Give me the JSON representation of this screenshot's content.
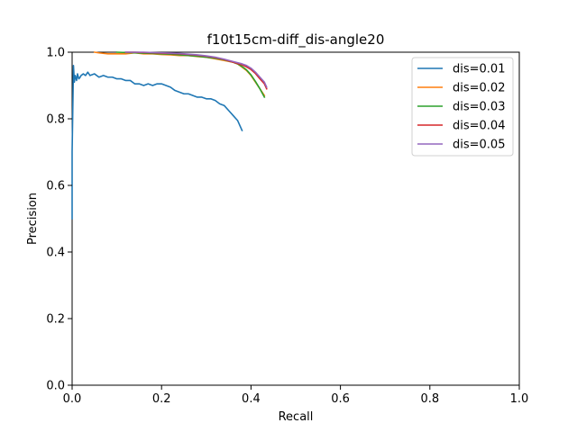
{
  "chart_data": {
    "type": "line",
    "title": "f10t15cm-diff_dis-angle20",
    "xlabel": "Recall",
    "ylabel": "Precision",
    "xlim": [
      0,
      1
    ],
    "ylim": [
      0,
      1
    ],
    "xticks": [
      "0.0",
      "0.2",
      "0.4",
      "0.6",
      "0.8",
      "1.0"
    ],
    "yticks": [
      "0.0",
      "0.2",
      "0.4",
      "0.6",
      "0.8",
      "1.0"
    ],
    "grid": false,
    "legend_position": "top-right",
    "series": [
      {
        "name": "dis=0.01",
        "color": "#1f77b4",
        "x": [
          0.0,
          0.0,
          0.003,
          0.005,
          0.007,
          0.01,
          0.012,
          0.015,
          0.018,
          0.02,
          0.025,
          0.03,
          0.035,
          0.04,
          0.05,
          0.06,
          0.07,
          0.08,
          0.09,
          0.1,
          0.11,
          0.12,
          0.13,
          0.14,
          0.15,
          0.16,
          0.17,
          0.18,
          0.19,
          0.2,
          0.21,
          0.22,
          0.23,
          0.24,
          0.25,
          0.26,
          0.27,
          0.28,
          0.29,
          0.3,
          0.31,
          0.32,
          0.33,
          0.34,
          0.35,
          0.36,
          0.37,
          0.38
        ],
        "y": [
          0.5,
          0.7,
          0.96,
          0.91,
          0.93,
          0.915,
          0.935,
          0.92,
          0.925,
          0.93,
          0.935,
          0.93,
          0.94,
          0.93,
          0.935,
          0.925,
          0.93,
          0.925,
          0.925,
          0.92,
          0.92,
          0.915,
          0.915,
          0.905,
          0.905,
          0.9,
          0.905,
          0.9,
          0.905,
          0.905,
          0.9,
          0.895,
          0.885,
          0.88,
          0.875,
          0.875,
          0.87,
          0.865,
          0.865,
          0.86,
          0.86,
          0.855,
          0.845,
          0.84,
          0.825,
          0.81,
          0.795,
          0.765
        ]
      },
      {
        "name": "dis=0.02",
        "color": "#ff7f0e",
        "x": [
          0.05,
          0.06,
          0.08,
          0.1,
          0.12,
          0.14,
          0.16,
          0.18,
          0.2,
          0.22,
          0.24,
          0.26,
          0.28,
          0.3,
          0.32,
          0.34,
          0.36,
          0.37,
          0.38,
          0.39,
          0.4,
          0.41,
          0.42,
          0.43
        ],
        "y": [
          1.0,
          0.998,
          0.995,
          0.995,
          0.995,
          0.998,
          0.995,
          0.995,
          0.993,
          0.992,
          0.99,
          0.99,
          0.987,
          0.985,
          0.98,
          0.975,
          0.97,
          0.965,
          0.955,
          0.945,
          0.93,
          0.91,
          0.89,
          0.87
        ]
      },
      {
        "name": "dis=0.03",
        "color": "#2ca02c",
        "x": [
          0.1,
          0.12,
          0.14,
          0.16,
          0.18,
          0.2,
          0.22,
          0.24,
          0.26,
          0.28,
          0.3,
          0.32,
          0.34,
          0.36,
          0.37,
          0.38,
          0.39,
          0.4,
          0.41,
          0.42,
          0.43
        ],
        "y": [
          1.0,
          0.999,
          0.998,
          0.997,
          0.996,
          0.995,
          0.994,
          0.992,
          0.99,
          0.988,
          0.985,
          0.982,
          0.977,
          0.97,
          0.965,
          0.957,
          0.947,
          0.932,
          0.912,
          0.89,
          0.865
        ]
      },
      {
        "name": "dis=0.04",
        "color": "#d62728",
        "x": [
          0.12,
          0.14,
          0.16,
          0.18,
          0.2,
          0.22,
          0.24,
          0.26,
          0.28,
          0.3,
          0.32,
          0.34,
          0.36,
          0.38,
          0.39,
          0.4,
          0.41,
          0.42,
          0.43,
          0.435
        ],
        "y": [
          1.0,
          1.0,
          0.999,
          0.998,
          0.997,
          0.996,
          0.995,
          0.993,
          0.991,
          0.988,
          0.984,
          0.978,
          0.97,
          0.962,
          0.956,
          0.948,
          0.936,
          0.92,
          0.905,
          0.89
        ]
      },
      {
        "name": "dis=0.05",
        "color": "#9467bd",
        "x": [
          0.12,
          0.14,
          0.16,
          0.18,
          0.2,
          0.22,
          0.24,
          0.26,
          0.28,
          0.3,
          0.32,
          0.34,
          0.36,
          0.38,
          0.39,
          0.4,
          0.41,
          0.42,
          0.43,
          0.435
        ],
        "y": [
          1.0,
          1.0,
          1.0,
          0.999,
          0.998,
          0.997,
          0.996,
          0.994,
          0.992,
          0.989,
          0.985,
          0.979,
          0.972,
          0.965,
          0.96,
          0.952,
          0.94,
          0.925,
          0.91,
          0.895
        ]
      }
    ]
  }
}
